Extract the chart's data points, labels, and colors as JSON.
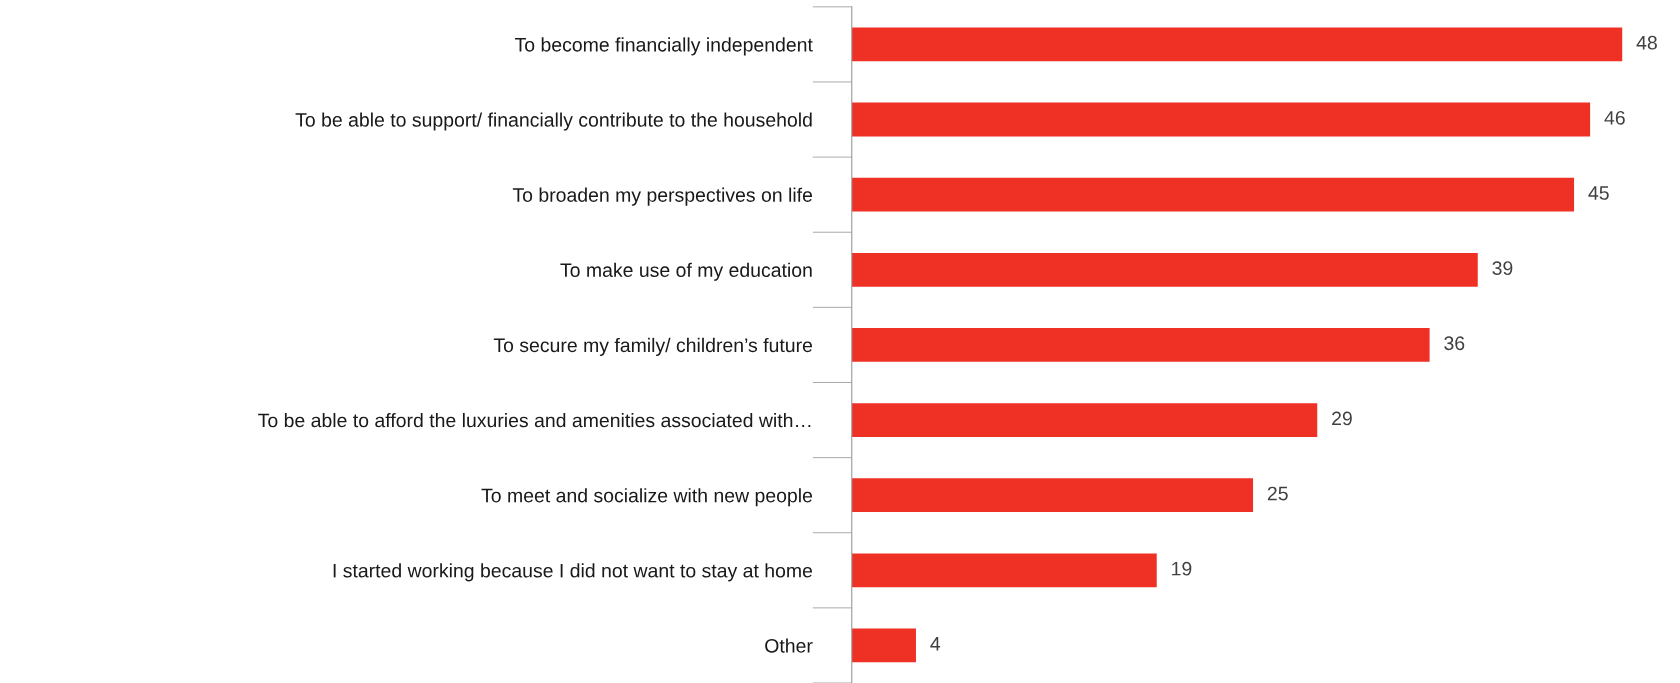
{
  "chart_data": {
    "type": "bar",
    "orientation": "horizontal",
    "categories": [
      "To become financially independent",
      "To be able to support/ financially contribute to the household",
      "To broaden my perspectives on life",
      "To make use of my education",
      "To secure my family/ children’s future",
      "To be able to afford the luxuries and amenities associated with…",
      "To meet and socialize with new people",
      "I started working because I did not want to stay at home",
      "Other"
    ],
    "values": [
      48,
      46,
      45,
      39,
      36,
      29,
      25,
      19,
      4
    ],
    "color": "#ee3124",
    "data_labels": true,
    "grid": false,
    "legend": false
  }
}
